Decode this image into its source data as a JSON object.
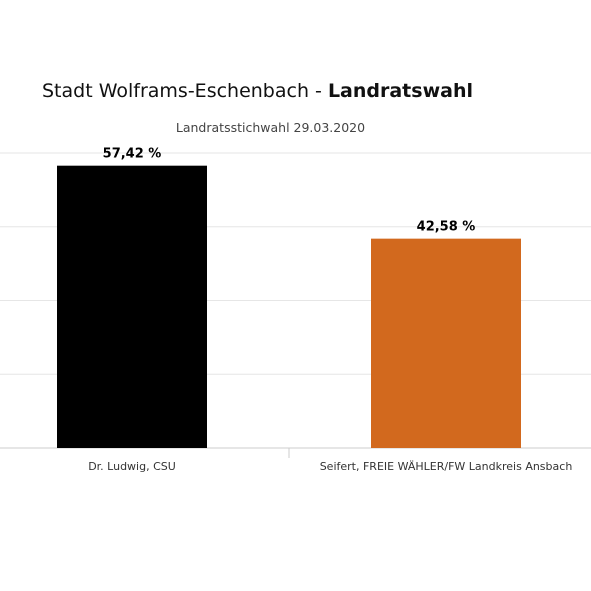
{
  "title": {
    "main": "Stadt Wolframs-Eschenbach - ",
    "bold": "Landratswahl"
  },
  "subtitle": "Landratsstichwahl 29.03.2020",
  "chart_data": {
    "type": "bar",
    "title": "Stadt Wolframs-Eschenbach - Landratswahl",
    "subtitle": "Landratsstichwahl 29.03.2020",
    "categories": [
      "Dr. Ludwig, CSU",
      "Seifert, FREIE WÄHLER/FW Landkreis Ansbach"
    ],
    "values": [
      57.42,
      42.58
    ],
    "value_labels": [
      "57,42 %",
      "42,58 %"
    ],
    "colors": [
      "#000000",
      "#d2691e"
    ],
    "ylim": [
      0,
      60
    ],
    "grid": true,
    "xlabel": "",
    "ylabel": ""
  },
  "colors": {
    "grid": "#e6e6e6",
    "axis": "#cccccc",
    "text": "#333333"
  }
}
